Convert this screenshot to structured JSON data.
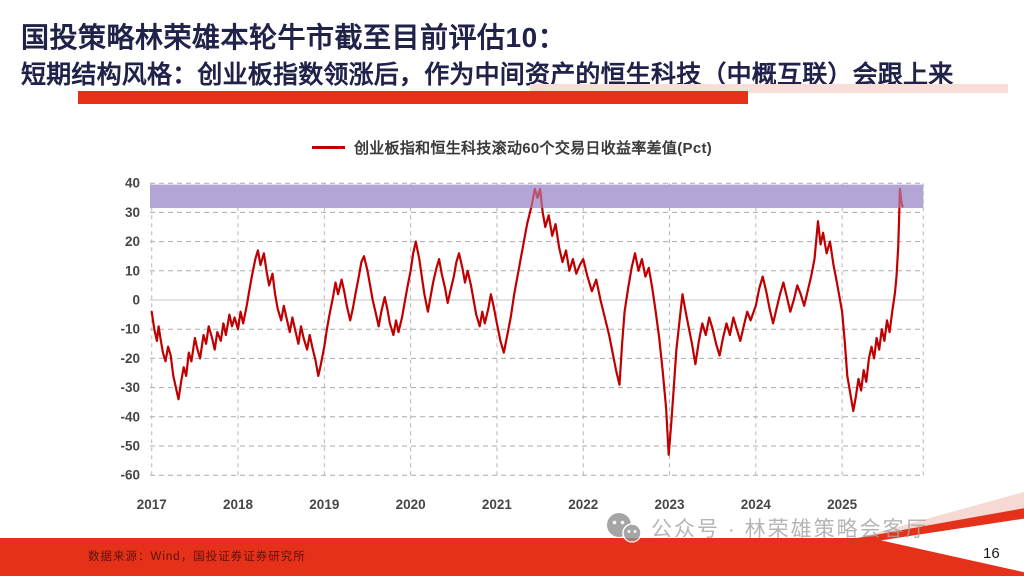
{
  "header": {
    "title": "国投策略林荣雄本轮牛市截至目前评估10：",
    "subtitle": "短期结构风格：创业板指数领涨后，作为中间资产的恒生科技（中概互联）会跟上来",
    "accent_color": "#e6311a",
    "title_color": "#20224a"
  },
  "chart_data": {
    "type": "line",
    "title": "创业板指和恒生科技滚动60个交易日收益率差值(Pct)",
    "legend": [
      {
        "label": "创业板指和恒生科技滚动60个交易日收益率差值(Pct)",
        "color": "#c00000"
      }
    ],
    "xlabel": "",
    "ylabel": "",
    "xlim": [
      2016.98,
      2025.94
    ],
    "ylim": [
      -60,
      40
    ],
    "ytick_values": [
      40,
      30,
      20,
      10,
      0,
      -10,
      -20,
      -30,
      -40,
      -50,
      -60
    ],
    "xtick_labels": [
      "2017",
      "2018",
      "2019",
      "2020",
      "2021",
      "2022",
      "2023",
      "2024",
      "2025"
    ],
    "xtick_values": [
      2017,
      2018,
      2019,
      2020,
      2021,
      2022,
      2023,
      2024,
      2025
    ],
    "grid": "dashed",
    "gridline_color": "#ababab",
    "zeroline_color": "#c6c6c6",
    "highlight_band": {
      "from": 31.5,
      "to": 39.5,
      "color": "#b3a6d6"
    },
    "series": [
      {
        "name": "创业板指和恒生科技滚动60个交易日收益率差值(Pct)",
        "color": "#c00000",
        "points": [
          [
            2017.0,
            -4
          ],
          [
            2017.03,
            -10
          ],
          [
            2017.06,
            -14
          ],
          [
            2017.08,
            -9
          ],
          [
            2017.1,
            -13
          ],
          [
            2017.13,
            -18
          ],
          [
            2017.16,
            -21
          ],
          [
            2017.19,
            -16
          ],
          [
            2017.22,
            -19
          ],
          [
            2017.25,
            -26
          ],
          [
            2017.28,
            -30
          ],
          [
            2017.31,
            -34
          ],
          [
            2017.34,
            -28
          ],
          [
            2017.37,
            -23
          ],
          [
            2017.4,
            -26
          ],
          [
            2017.43,
            -18
          ],
          [
            2017.46,
            -21
          ],
          [
            2017.5,
            -13
          ],
          [
            2017.53,
            -17
          ],
          [
            2017.56,
            -20
          ],
          [
            2017.6,
            -12
          ],
          [
            2017.63,
            -15
          ],
          [
            2017.66,
            -9
          ],
          [
            2017.7,
            -13
          ],
          [
            2017.73,
            -17
          ],
          [
            2017.76,
            -11
          ],
          [
            2017.8,
            -14
          ],
          [
            2017.83,
            -8
          ],
          [
            2017.86,
            -12
          ],
          [
            2017.9,
            -5
          ],
          [
            2017.93,
            -9
          ],
          [
            2017.96,
            -6
          ],
          [
            2018.0,
            -10
          ],
          [
            2018.03,
            -4
          ],
          [
            2018.06,
            -8
          ],
          [
            2018.1,
            -2
          ],
          [
            2018.13,
            3
          ],
          [
            2018.16,
            8
          ],
          [
            2018.2,
            14
          ],
          [
            2018.23,
            17
          ],
          [
            2018.26,
            12
          ],
          [
            2018.3,
            16
          ],
          [
            2018.33,
            10
          ],
          [
            2018.36,
            5
          ],
          [
            2018.4,
            9
          ],
          [
            2018.43,
            2
          ],
          [
            2018.46,
            -3
          ],
          [
            2018.5,
            -7
          ],
          [
            2018.53,
            -2
          ],
          [
            2018.56,
            -6
          ],
          [
            2018.6,
            -11
          ],
          [
            2018.63,
            -6
          ],
          [
            2018.66,
            -10
          ],
          [
            2018.7,
            -15
          ],
          [
            2018.73,
            -9
          ],
          [
            2018.76,
            -13
          ],
          [
            2018.8,
            -17
          ],
          [
            2018.83,
            -12
          ],
          [
            2018.86,
            -16
          ],
          [
            2018.9,
            -21
          ],
          [
            2018.93,
            -26
          ],
          [
            2018.96,
            -22
          ],
          [
            2019.0,
            -16
          ],
          [
            2019.03,
            -10
          ],
          [
            2019.06,
            -5
          ],
          [
            2019.1,
            1
          ],
          [
            2019.13,
            6
          ],
          [
            2019.16,
            2
          ],
          [
            2019.2,
            7
          ],
          [
            2019.23,
            3
          ],
          [
            2019.26,
            -2
          ],
          [
            2019.3,
            -7
          ],
          [
            2019.33,
            -3
          ],
          [
            2019.36,
            2
          ],
          [
            2019.4,
            8
          ],
          [
            2019.43,
            13
          ],
          [
            2019.46,
            15
          ],
          [
            2019.5,
            10
          ],
          [
            2019.53,
            5
          ],
          [
            2019.56,
            0
          ],
          [
            2019.6,
            -5
          ],
          [
            2019.63,
            -9
          ],
          [
            2019.66,
            -4
          ],
          [
            2019.7,
            1
          ],
          [
            2019.73,
            -3
          ],
          [
            2019.76,
            -8
          ],
          [
            2019.8,
            -12
          ],
          [
            2019.83,
            -7
          ],
          [
            2019.86,
            -11
          ],
          [
            2019.9,
            -6
          ],
          [
            2019.93,
            -1
          ],
          [
            2019.96,
            4
          ],
          [
            2020.0,
            10
          ],
          [
            2020.03,
            16
          ],
          [
            2020.06,
            20
          ],
          [
            2020.1,
            14
          ],
          [
            2020.13,
            8
          ],
          [
            2020.16,
            2
          ],
          [
            2020.2,
            -4
          ],
          [
            2020.23,
            1
          ],
          [
            2020.26,
            6
          ],
          [
            2020.3,
            11
          ],
          [
            2020.33,
            14
          ],
          [
            2020.36,
            9
          ],
          [
            2020.4,
            4
          ],
          [
            2020.43,
            -1
          ],
          [
            2020.46,
            3
          ],
          [
            2020.5,
            8
          ],
          [
            2020.53,
            13
          ],
          [
            2020.56,
            16
          ],
          [
            2020.6,
            11
          ],
          [
            2020.63,
            6
          ],
          [
            2020.66,
            10
          ],
          [
            2020.7,
            5
          ],
          [
            2020.73,
            0
          ],
          [
            2020.76,
            -5
          ],
          [
            2020.8,
            -9
          ],
          [
            2020.83,
            -4
          ],
          [
            2020.86,
            -8
          ],
          [
            2020.9,
            -3
          ],
          [
            2020.93,
            2
          ],
          [
            2020.96,
            -2
          ],
          [
            2021.0,
            -8
          ],
          [
            2021.04,
            -14
          ],
          [
            2021.08,
            -18
          ],
          [
            2021.12,
            -12
          ],
          [
            2021.16,
            -6
          ],
          [
            2021.2,
            2
          ],
          [
            2021.25,
            10
          ],
          [
            2021.3,
            18
          ],
          [
            2021.35,
            26
          ],
          [
            2021.4,
            32
          ],
          [
            2021.44,
            38
          ],
          [
            2021.47,
            35
          ],
          [
            2021.5,
            38
          ],
          [
            2021.53,
            30
          ],
          [
            2021.56,
            25
          ],
          [
            2021.6,
            29
          ],
          [
            2021.64,
            22
          ],
          [
            2021.68,
            26
          ],
          [
            2021.72,
            18
          ],
          [
            2021.76,
            13
          ],
          [
            2021.8,
            17
          ],
          [
            2021.84,
            10
          ],
          [
            2021.88,
            14
          ],
          [
            2021.92,
            9
          ],
          [
            2021.96,
            12
          ],
          [
            2022.0,
            14
          ],
          [
            2022.05,
            8
          ],
          [
            2022.1,
            3
          ],
          [
            2022.15,
            7
          ],
          [
            2022.2,
            0
          ],
          [
            2022.25,
            -6
          ],
          [
            2022.3,
            -12
          ],
          [
            2022.34,
            -18
          ],
          [
            2022.38,
            -24
          ],
          [
            2022.42,
            -29
          ],
          [
            2022.45,
            -15
          ],
          [
            2022.48,
            -4
          ],
          [
            2022.52,
            4
          ],
          [
            2022.56,
            11
          ],
          [
            2022.6,
            16
          ],
          [
            2022.64,
            10
          ],
          [
            2022.68,
            14
          ],
          [
            2022.72,
            8
          ],
          [
            2022.76,
            11
          ],
          [
            2022.8,
            4
          ],
          [
            2022.84,
            -4
          ],
          [
            2022.88,
            -13
          ],
          [
            2022.92,
            -24
          ],
          [
            2022.96,
            -37
          ],
          [
            2022.99,
            -53
          ],
          [
            2023.02,
            -42
          ],
          [
            2023.05,
            -30
          ],
          [
            2023.08,
            -17
          ],
          [
            2023.12,
            -6
          ],
          [
            2023.15,
            2
          ],
          [
            2023.18,
            -3
          ],
          [
            2023.22,
            -9
          ],
          [
            2023.26,
            -15
          ],
          [
            2023.3,
            -22
          ],
          [
            2023.34,
            -14
          ],
          [
            2023.38,
            -8
          ],
          [
            2023.42,
            -12
          ],
          [
            2023.46,
            -6
          ],
          [
            2023.5,
            -10
          ],
          [
            2023.54,
            -15
          ],
          [
            2023.58,
            -19
          ],
          [
            2023.62,
            -13
          ],
          [
            2023.66,
            -8
          ],
          [
            2023.7,
            -12
          ],
          [
            2023.74,
            -6
          ],
          [
            2023.78,
            -10
          ],
          [
            2023.82,
            -14
          ],
          [
            2023.86,
            -9
          ],
          [
            2023.9,
            -4
          ],
          [
            2023.94,
            -7
          ],
          [
            2024.0,
            -2
          ],
          [
            2024.04,
            4
          ],
          [
            2024.08,
            8
          ],
          [
            2024.12,
            3
          ],
          [
            2024.16,
            -3
          ],
          [
            2024.2,
            -8
          ],
          [
            2024.24,
            -3
          ],
          [
            2024.28,
            2
          ],
          [
            2024.32,
            6
          ],
          [
            2024.36,
            1
          ],
          [
            2024.4,
            -4
          ],
          [
            2024.44,
            0
          ],
          [
            2024.48,
            5
          ],
          [
            2024.52,
            2
          ],
          [
            2024.56,
            -2
          ],
          [
            2024.6,
            3
          ],
          [
            2024.64,
            8
          ],
          [
            2024.68,
            14
          ],
          [
            2024.72,
            27
          ],
          [
            2024.75,
            19
          ],
          [
            2024.78,
            23
          ],
          [
            2024.82,
            16
          ],
          [
            2024.86,
            20
          ],
          [
            2024.9,
            12
          ],
          [
            2024.94,
            6
          ],
          [
            2025.0,
            -4
          ],
          [
            2025.03,
            -14
          ],
          [
            2025.06,
            -26
          ],
          [
            2025.1,
            -33
          ],
          [
            2025.13,
            -38
          ],
          [
            2025.16,
            -33
          ],
          [
            2025.19,
            -27
          ],
          [
            2025.22,
            -31
          ],
          [
            2025.25,
            -24
          ],
          [
            2025.28,
            -28
          ],
          [
            2025.31,
            -20
          ],
          [
            2025.34,
            -16
          ],
          [
            2025.37,
            -20
          ],
          [
            2025.4,
            -13
          ],
          [
            2025.43,
            -17
          ],
          [
            2025.46,
            -10
          ],
          [
            2025.49,
            -14
          ],
          [
            2025.52,
            -7
          ],
          [
            2025.55,
            -11
          ],
          [
            2025.58,
            -4
          ],
          [
            2025.61,
            2
          ],
          [
            2025.63,
            8
          ],
          [
            2025.65,
            18
          ],
          [
            2025.66,
            28
          ],
          [
            2025.67,
            38
          ],
          [
            2025.685,
            34
          ],
          [
            2025.7,
            32
          ]
        ]
      }
    ]
  },
  "footer": {
    "source": "数据来源：Wind，国投证券证券研究所",
    "watermark": "公众号 · 林荣雄策略会客厅",
    "page_number": "16"
  }
}
